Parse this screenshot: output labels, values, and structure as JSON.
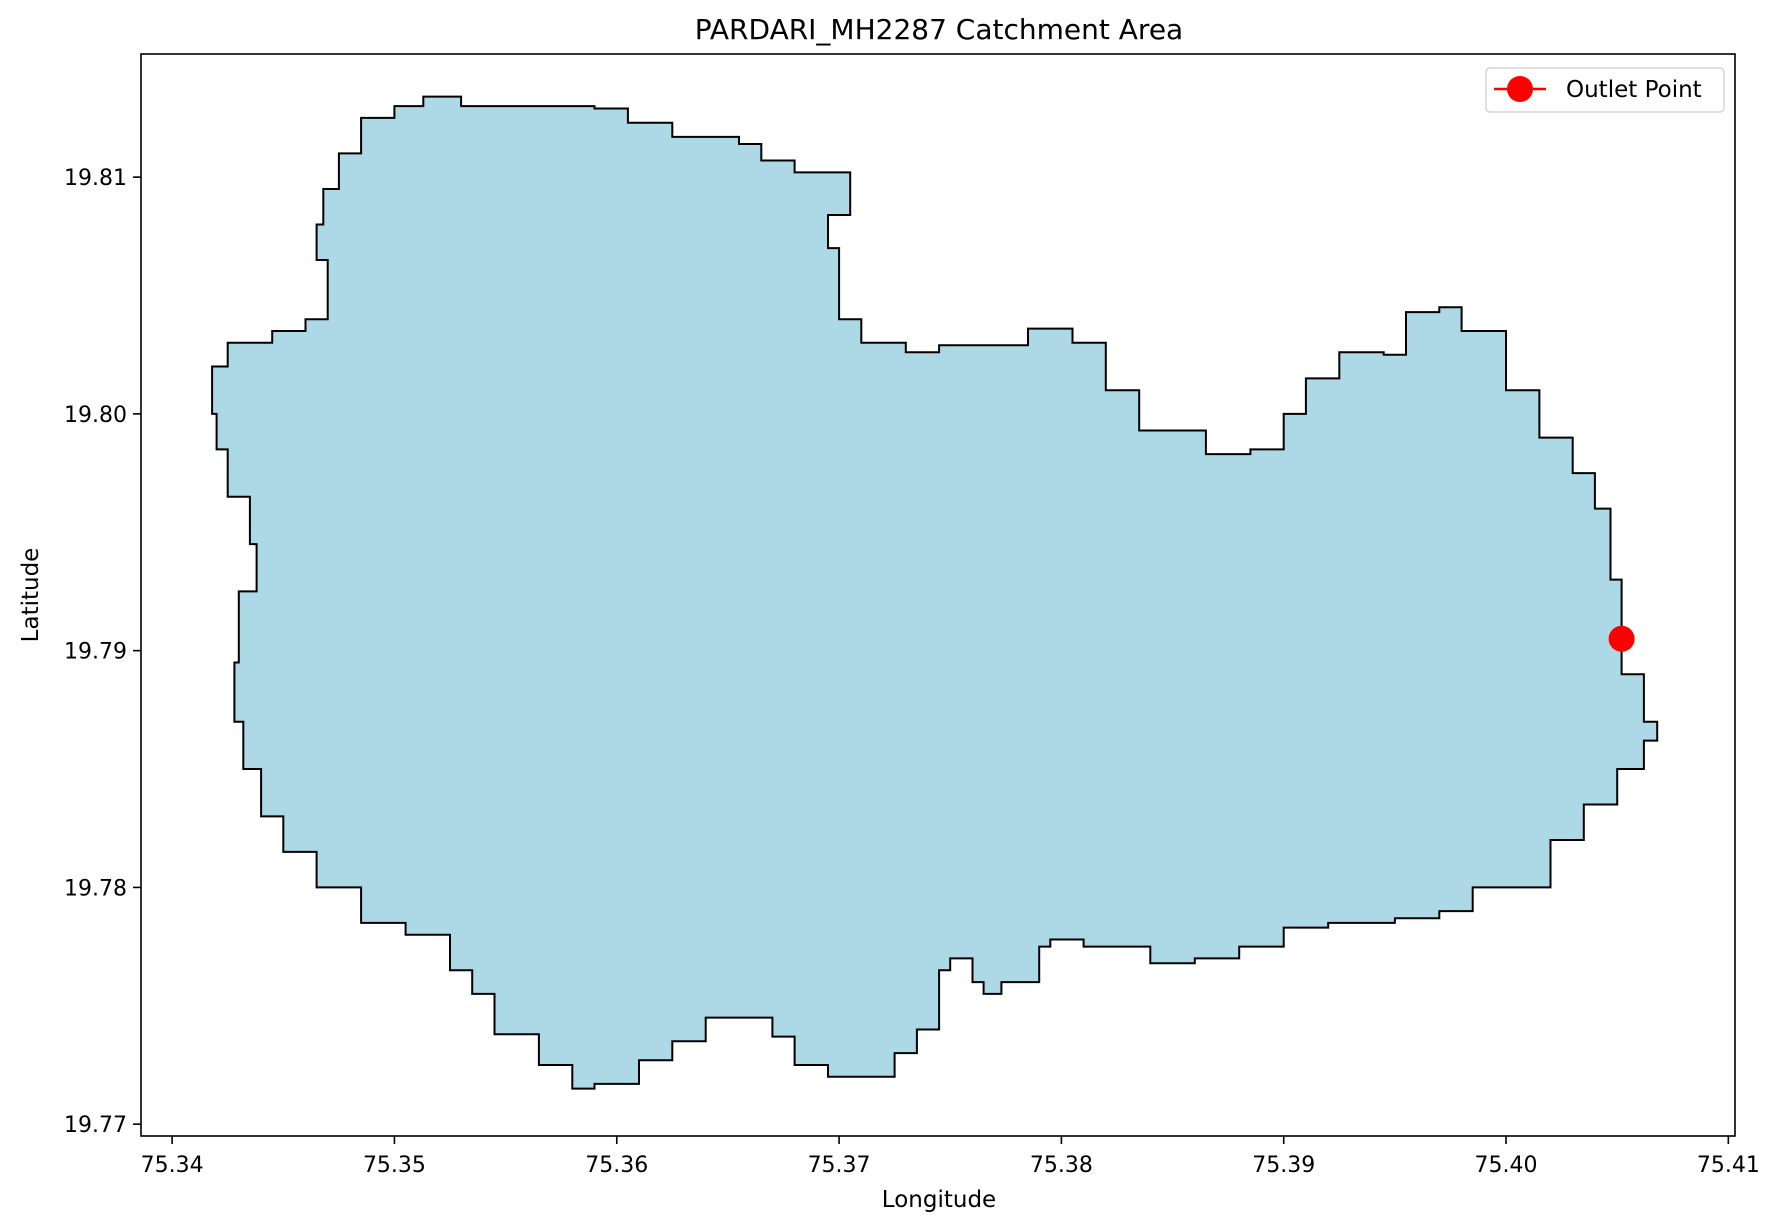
{
  "chart_data": {
    "type": "map",
    "title": "PARDARI_MH2287 Catchment Area",
    "xlabel": "Longitude",
    "ylabel": "Latitude",
    "xlim": [
      75.3386,
      75.4103
    ],
    "ylim": [
      19.7695,
      19.8152
    ],
    "x_ticks": [
      75.34,
      75.35,
      75.36,
      75.37,
      75.38,
      75.39,
      75.4,
      75.41
    ],
    "x_tick_labels": [
      "75.34",
      "75.35",
      "75.36",
      "75.37",
      "75.38",
      "75.39",
      "75.40",
      "75.41"
    ],
    "y_ticks": [
      19.77,
      19.78,
      19.79,
      19.8,
      19.81
    ],
    "y_tick_labels": [
      "19.77",
      "19.78",
      "19.79",
      "19.80",
      "19.81"
    ],
    "grid": false,
    "legend": {
      "position": "top-right",
      "entries": [
        {
          "label": "Outlet Point",
          "color": "#ff0000",
          "marker": "circle"
        }
      ]
    },
    "catchment": {
      "fill": "#add8e6",
      "edge": "#000000",
      "boundary": [
        [
          75.3513,
          19.8134
        ],
        [
          75.353,
          19.813
        ],
        [
          75.357,
          19.813
        ],
        [
          75.359,
          19.8129
        ],
        [
          75.3605,
          19.8123
        ],
        [
          75.3625,
          19.8117
        ],
        [
          75.3655,
          19.8114
        ],
        [
          75.3665,
          19.8107
        ],
        [
          75.368,
          19.8102
        ],
        [
          75.37,
          19.8102
        ],
        [
          75.3705,
          19.81
        ],
        [
          75.3705,
          19.8084
        ],
        [
          75.3695,
          19.807
        ],
        [
          75.37,
          19.804
        ],
        [
          75.371,
          19.803
        ],
        [
          75.373,
          19.8026
        ],
        [
          75.3745,
          19.8029
        ],
        [
          75.3785,
          19.8036
        ],
        [
          75.3805,
          19.803
        ],
        [
          75.382,
          19.801
        ],
        [
          75.3835,
          19.7993
        ],
        [
          75.3865,
          19.7983
        ],
        [
          75.3885,
          19.7985
        ],
        [
          75.39,
          19.8
        ],
        [
          75.391,
          19.8015
        ],
        [
          75.3925,
          19.8026
        ],
        [
          75.3945,
          19.8025
        ],
        [
          75.3955,
          19.8043
        ],
        [
          75.397,
          19.8045
        ],
        [
          75.398,
          19.8035
        ],
        [
          75.4,
          19.801
        ],
        [
          75.4015,
          19.799
        ],
        [
          75.403,
          19.7975
        ],
        [
          75.404,
          19.796
        ],
        [
          75.4047,
          19.793
        ],
        [
          75.4052,
          19.7905
        ],
        [
          75.4052,
          19.789
        ],
        [
          75.4062,
          19.787
        ],
        [
          75.4068,
          19.7862
        ],
        [
          75.4062,
          19.785
        ],
        [
          75.405,
          19.7835
        ],
        [
          75.4035,
          19.782
        ],
        [
          75.402,
          19.78
        ],
        [
          75.3995,
          19.78
        ],
        [
          75.3985,
          19.779
        ],
        [
          75.397,
          19.7787
        ],
        [
          75.395,
          19.7785
        ],
        [
          75.392,
          19.7783
        ],
        [
          75.39,
          19.7775
        ],
        [
          75.388,
          19.777
        ],
        [
          75.386,
          19.7768
        ],
        [
          75.384,
          19.7775
        ],
        [
          75.381,
          19.7778
        ],
        [
          75.3795,
          19.7775
        ],
        [
          75.379,
          19.776
        ],
        [
          75.3773,
          19.7755
        ],
        [
          75.3765,
          19.776
        ],
        [
          75.376,
          19.777
        ],
        [
          75.375,
          19.7765
        ],
        [
          75.3745,
          19.774
        ],
        [
          75.3735,
          19.773
        ],
        [
          75.3725,
          19.772
        ],
        [
          75.3695,
          19.7725
        ],
        [
          75.368,
          19.7737
        ],
        [
          75.367,
          19.7745
        ],
        [
          75.3655,
          19.7745
        ],
        [
          75.364,
          19.7735
        ],
        [
          75.3625,
          19.7727
        ],
        [
          75.361,
          19.7717
        ],
        [
          75.359,
          19.7715
        ],
        [
          75.358,
          19.7725
        ],
        [
          75.3565,
          19.7738
        ],
        [
          75.3545,
          19.7755
        ],
        [
          75.3535,
          19.7765
        ],
        [
          75.3525,
          19.778
        ],
        [
          75.3505,
          19.7785
        ],
        [
          75.3485,
          19.78
        ],
        [
          75.3465,
          19.7815
        ],
        [
          75.345,
          19.783
        ],
        [
          75.344,
          19.785
        ],
        [
          75.3432,
          19.787
        ],
        [
          75.3428,
          19.7895
        ],
        [
          75.343,
          19.7925
        ],
        [
          75.3438,
          19.7945
        ],
        [
          75.3435,
          19.7965
        ],
        [
          75.3425,
          19.7985
        ],
        [
          75.342,
          19.8
        ],
        [
          75.3418,
          19.802
        ],
        [
          75.3425,
          19.803
        ],
        [
          75.3445,
          19.8035
        ],
        [
          75.346,
          19.804
        ],
        [
          75.347,
          19.8055
        ],
        [
          75.347,
          19.8065
        ],
        [
          75.3465,
          19.808
        ],
        [
          75.3468,
          19.8095
        ],
        [
          75.3475,
          19.811
        ],
        [
          75.3485,
          19.8125
        ],
        [
          75.35,
          19.813
        ]
      ]
    },
    "outlet_point": {
      "label": "Outlet Point",
      "lon": 75.4052,
      "lat": 19.7905,
      "color": "#ff0000"
    }
  }
}
